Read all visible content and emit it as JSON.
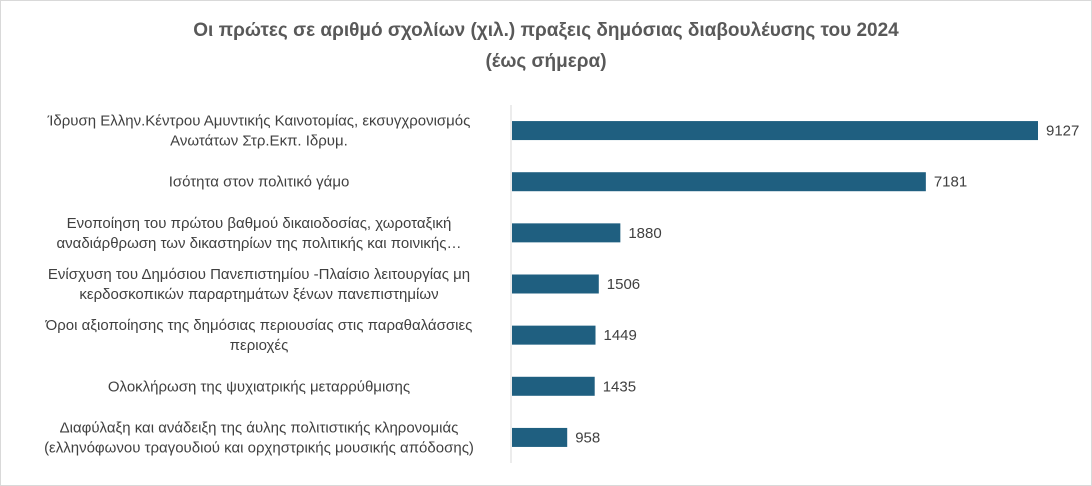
{
  "chart_data": {
    "type": "bar",
    "orientation": "horizontal",
    "title": "Οι πρώτες σε αριθμό σχολίων (χιλ.) πραξεις δημόσιας διαβουλέυσης του 2024",
    "subtitle": "(έως σήμερα)",
    "categories": [
      [
        "Ίδρυση Ελλην.Κέντρου Αμυντικής Καινοτομίας, εκσυγχρονισμός",
        "Ανωτάτων Στρ.Εκπ. Ιδρυμ."
      ],
      [
        "Ισότητα στον πολιτικό γάμο"
      ],
      [
        "Ενοποίηση του πρώτου βαθμού δικαιοδοσίας, χωροταξική",
        "αναδιάρθρωση των δικαστηρίων της πολιτικής και ποινικής…"
      ],
      [
        "Ενίσχυση του Δημόσιου Πανεπιστημίου -Πλαίσιο λειτουργίας μη",
        "κερδοσκοπικών παραρτημάτων ξένων πανεπιστημίων"
      ],
      [
        "Όροι αξιοποίησης της δημόσιας περιουσίας στις παραθαλάσσιες",
        "περιοχές"
      ],
      [
        "Ολοκλήρωση της ψυχιατρικής μεταρρύθμισης"
      ],
      [
        "Διαφύλαξη και ανάδειξη της άυλης πολιτιστικής κληρονομιάς",
        "(ελληνόφωνου τραγουδιού και ορχηστρικής μουσικής απόδοσης)"
      ]
    ],
    "values": [
      9127,
      7181,
      1880,
      1506,
      1449,
      1435,
      958
    ],
    "value_labels": [
      "9127",
      "7181",
      "1880",
      "1506",
      "1449",
      "1435",
      "958"
    ],
    "bar_color": "#1f5f80",
    "xlim": [
      0,
      9127
    ],
    "grid": false,
    "legend": "none"
  }
}
